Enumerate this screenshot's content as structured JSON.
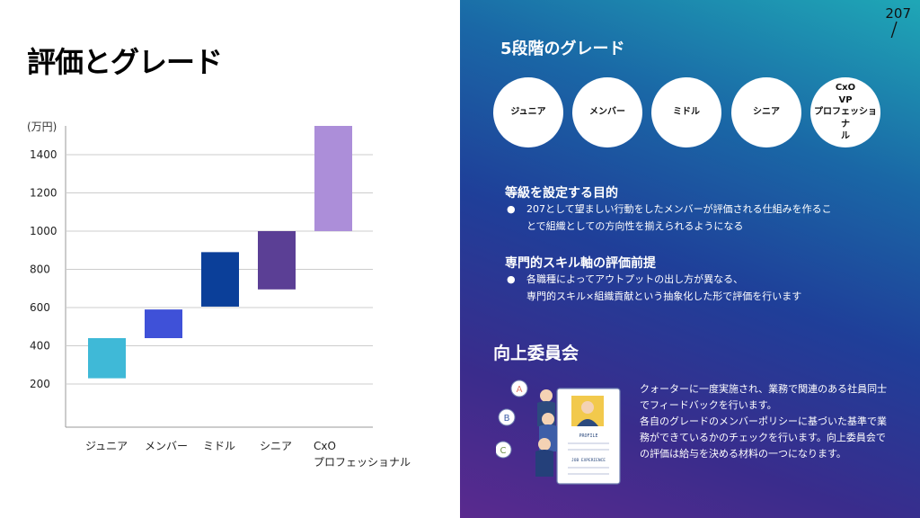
{
  "page": {
    "title": "評価とグレード"
  },
  "chart_data": {
    "type": "bar",
    "unit_label": "(万円)",
    "yticks": [
      200,
      400,
      600,
      800,
      1000,
      1200,
      1400
    ],
    "categories": [
      "ジュニア",
      "メンバー",
      "ミドル",
      "シニア",
      "CxO\nプロフェッショナル"
    ],
    "ranges": [
      [
        230,
        440
      ],
      [
        440,
        590
      ],
      [
        605,
        890
      ],
      [
        695,
        1000
      ],
      [
        1000,
        1600
      ]
    ],
    "colors": [
      "#3fb9d7",
      "#3f51d8",
      "#0b3f99",
      "#5b3f95",
      "#ac8ed9"
    ]
  },
  "logo": {
    "text": "207"
  },
  "grades": {
    "title": "5段階のグレード",
    "items": [
      "ジュニア",
      "メンバー",
      "ミドル",
      "シニア",
      "CxO\nVP\nプロフェッショナ\nル"
    ]
  },
  "purpose": {
    "heading": "等級を設定する目的",
    "bullet": "●",
    "text": "207として望ましい行動をしたメンバーが評価される仕組みを作ることで組織としての方向性を揃えられるようになる"
  },
  "premise": {
    "heading": "専門的スキル軸の評価前提",
    "bullet": "●",
    "text": "各職種によってアウトプットの出し方が異なる、\n専門的スキル×組織貢献という抽象化した形で評価を行います"
  },
  "committee": {
    "title": "向上委員会",
    "text": "クォーターに一度実施され、業務で関連のある社員同士でフィードバックを行います。\n各自のグレードのメンバーポリシーに基づいた基準で業務ができているかのチェックを行います。向上委員会での評価は給与を決める材料の一つになります。",
    "illus_labels": [
      "A",
      "B",
      "C"
    ],
    "doc_label_1": "PROFILE",
    "doc_label_2": "JOB EXPERIENCE"
  }
}
